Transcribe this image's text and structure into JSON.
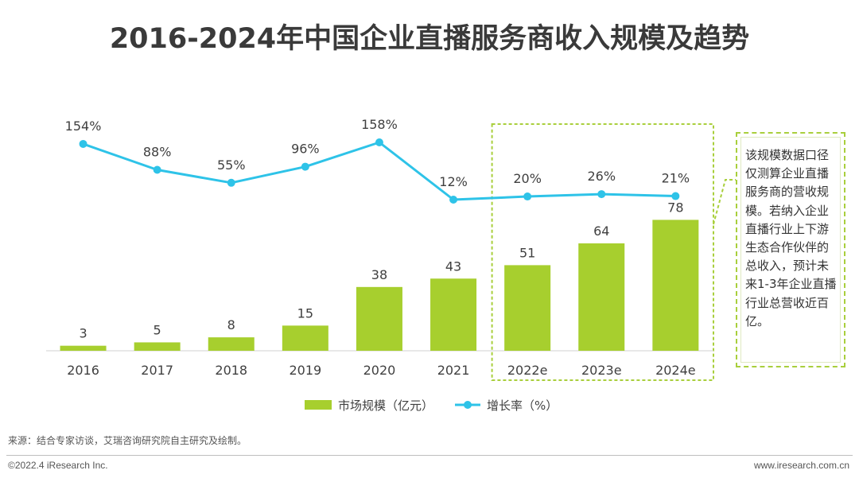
{
  "title": "2016-2024年中国企业直播服务商收入规模及趋势",
  "note": "该规模数据口径仅测算企业直播服务商的营收规模。若纳入企业直播行业上下游生态合作伙伴的总收入，预计未来1-3年企业直播行业总营收近百亿。",
  "source": "来源：结合专家访谈，艾瑞咨询研究院自主研究及绘制。",
  "copyright": "©2022.4 iResearch Inc.",
  "website": "www.iresearch.com.cn",
  "colors": {
    "bar": "#a7cf2e",
    "line": "#2ec3e8",
    "forecast_box": "#a9cf3c"
  },
  "chart_data": {
    "type": "bar",
    "categories": [
      "2016",
      "2017",
      "2018",
      "2019",
      "2020",
      "2021",
      "2022e",
      "2023e",
      "2024e"
    ],
    "series": [
      {
        "name": "市场规模（亿元）",
        "type": "bar",
        "values": [
          3,
          5,
          8,
          15,
          38,
          43,
          51,
          64,
          78
        ]
      },
      {
        "name": "增长率（%）",
        "type": "line",
        "values": [
          154,
          88,
          55,
          96,
          158,
          12,
          20,
          26,
          21
        ]
      }
    ],
    "bar_labels": [
      "3",
      "5",
      "8",
      "15",
      "38",
      "43",
      "51",
      "64",
      "78"
    ],
    "line_labels": [
      "154%",
      "88%",
      "55%",
      "96%",
      "158%",
      "12%",
      "20%",
      "26%",
      "21%"
    ],
    "forecast_categories": [
      "2022e",
      "2023e",
      "2024e"
    ],
    "legend_position": "bottom",
    "grid": false
  }
}
